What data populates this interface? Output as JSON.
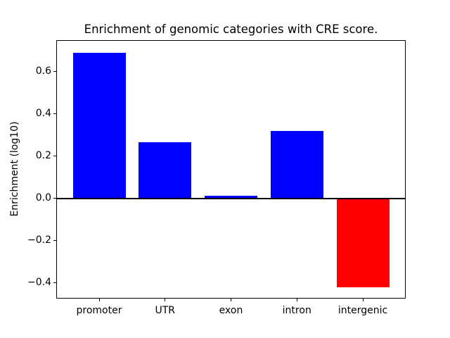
{
  "chart_data": {
    "type": "bar",
    "title": "Enrichment of genomic categories with CRE score.",
    "xlabel": "",
    "ylabel": "Enrichment (log10)",
    "categories": [
      "promoter",
      "UTR",
      "exon",
      "intron",
      "intergenic"
    ],
    "values": [
      0.69,
      0.265,
      0.013,
      0.32,
      -0.42
    ],
    "positive_color": "#0000ff",
    "negative_color": "#ff0000",
    "axis_color": "#000000",
    "background_color": "#ffffff",
    "ylim": [
      -0.47,
      0.745
    ],
    "baseline": 0,
    "yticks": [
      0.6,
      0.4,
      0.2,
      0.0,
      -0.2,
      -0.4
    ],
    "ytick_labels": [
      "0.6",
      "0.4",
      "0.2",
      "0.0",
      "−0.2",
      "−0.4"
    ],
    "bar_width_fraction": 0.8,
    "grid": false,
    "legend": null
  }
}
